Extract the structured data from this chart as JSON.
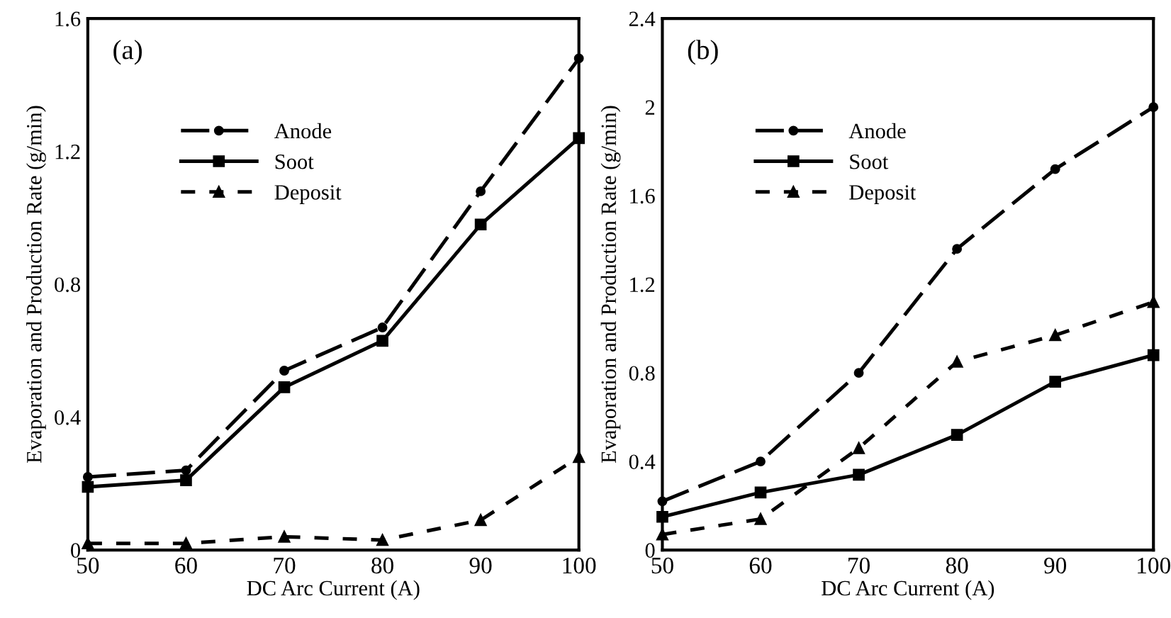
{
  "chart_data": [
    {
      "type": "line",
      "annotations": [
        "(a)"
      ],
      "xlabel": "DC Arc Current (A)",
      "ylabel": "Evaporation and Production Rate (g/min)",
      "x": [
        50,
        60,
        70,
        80,
        90,
        100
      ],
      "xlim": [
        50,
        100
      ],
      "xticks": [
        50,
        60,
        70,
        80,
        90,
        100
      ],
      "ylim": [
        0,
        1.6
      ],
      "yticks": [
        0,
        0.4,
        0.8,
        1.2,
        1.6
      ],
      "grid": false,
      "legend": "top left",
      "series": [
        {
          "name": "Anode",
          "color": "#000000",
          "marker": "circle",
          "line_style": "dashed",
          "values": [
            0.22,
            0.24,
            0.54,
            0.67,
            1.08,
            1.48
          ]
        },
        {
          "name": "Soot",
          "color": "#000000",
          "marker": "square",
          "line_style": "solid",
          "values": [
            0.19,
            0.21,
            0.49,
            0.63,
            0.98,
            1.24
          ]
        },
        {
          "name": "Deposit",
          "color": "#000000",
          "marker": "triangle",
          "line_style": "dotted",
          "values": [
            0.02,
            0.02,
            0.04,
            0.03,
            0.09,
            0.28
          ]
        }
      ]
    },
    {
      "type": "line",
      "annotations": [
        "(b)"
      ],
      "xlabel": "DC Arc Current (A)",
      "ylabel": "Evaporation and Production Rate (g/min)",
      "x": [
        50,
        60,
        70,
        80,
        90,
        100
      ],
      "xlim": [
        50,
        100
      ],
      "xticks": [
        50,
        60,
        70,
        80,
        90,
        100
      ],
      "ylim": [
        0,
        2.4
      ],
      "yticks": [
        0,
        0.4,
        0.8,
        1.2,
        1.6,
        2,
        2.4
      ],
      "grid": false,
      "legend": "top left",
      "series": [
        {
          "name": "Anode",
          "color": "#000000",
          "marker": "circle",
          "line_style": "dashed",
          "values": [
            0.22,
            0.4,
            0.8,
            1.36,
            1.72,
            2.0
          ]
        },
        {
          "name": "Soot",
          "color": "#000000",
          "marker": "square",
          "line_style": "solid",
          "values": [
            0.15,
            0.26,
            0.34,
            0.52,
            0.76,
            0.88
          ]
        },
        {
          "name": "Deposit",
          "color": "#000000",
          "marker": "triangle",
          "line_style": "dotted",
          "values": [
            0.07,
            0.14,
            0.46,
            0.85,
            0.97,
            1.12
          ]
        }
      ]
    }
  ]
}
